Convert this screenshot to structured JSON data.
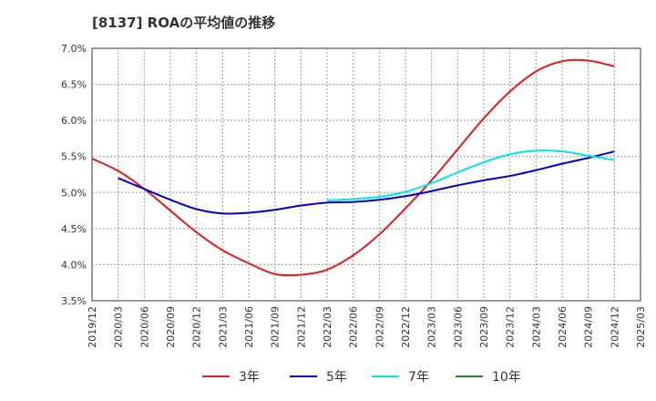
{
  "chart_data": {
    "type": "line",
    "title": "[8137]  ROAの平均値の推移",
    "xlabel": "",
    "ylabel": "",
    "ylim": [
      3.5,
      7.0
    ],
    "y_ticks": [
      "7.0%",
      "6.5%",
      "6.0%",
      "5.5%",
      "5.0%",
      "4.5%",
      "4.0%",
      "3.5%"
    ],
    "y_tick_values": [
      7.0,
      6.5,
      6.0,
      5.5,
      5.0,
      4.5,
      4.0,
      3.5
    ],
    "x_ticks": [
      "2019/12",
      "2020/03",
      "2020/06",
      "2020/09",
      "2020/12",
      "2021/03",
      "2021/06",
      "2021/09",
      "2021/12",
      "2022/03",
      "2022/06",
      "2022/09",
      "2022/12",
      "2023/03",
      "2023/06",
      "2023/09",
      "2023/12",
      "2024/03",
      "2024/06",
      "2024/09",
      "2024/12",
      "2025/03"
    ],
    "grid": true,
    "legend_position": "bottom",
    "series": [
      {
        "name": "3年",
        "color": "#e41a1c",
        "x": [
          "2019/12",
          "2020/03",
          "2020/06",
          "2020/09",
          "2020/12",
          "2021/03",
          "2021/06",
          "2021/09",
          "2021/12",
          "2022/03",
          "2022/06",
          "2022/09",
          "2022/12",
          "2023/03",
          "2023/06",
          "2023/09",
          "2023/12",
          "2024/03",
          "2024/06",
          "2024/09",
          "2024/12"
        ],
        "values": [
          5.47,
          5.3,
          5.05,
          4.75,
          4.45,
          4.2,
          4.02,
          3.87,
          3.86,
          3.93,
          4.13,
          4.42,
          4.78,
          5.17,
          5.6,
          6.03,
          6.4,
          6.68,
          6.82,
          6.83,
          6.75
        ]
      },
      {
        "name": "5年",
        "color": "#0000cc",
        "x": [
          "2020/03",
          "2020/06",
          "2020/09",
          "2020/12",
          "2021/03",
          "2021/06",
          "2021/09",
          "2021/12",
          "2022/03",
          "2022/06",
          "2022/09",
          "2022/12",
          "2023/03",
          "2023/06",
          "2023/09",
          "2023/12",
          "2024/03",
          "2024/06",
          "2024/09",
          "2024/12"
        ],
        "values": [
          5.2,
          5.05,
          4.9,
          4.77,
          4.71,
          4.72,
          4.76,
          4.82,
          4.86,
          4.87,
          4.9,
          4.95,
          5.02,
          5.1,
          5.17,
          5.23,
          5.31,
          5.4,
          5.48,
          5.57
        ]
      },
      {
        "name": "7年",
        "color": "#00e5ee",
        "x": [
          "2022/03",
          "2022/06",
          "2022/09",
          "2022/12",
          "2023/03",
          "2023/06",
          "2023/09",
          "2023/12",
          "2024/03",
          "2024/06",
          "2024/09",
          "2024/12"
        ],
        "values": [
          4.89,
          4.91,
          4.94,
          5.01,
          5.13,
          5.28,
          5.42,
          5.53,
          5.58,
          5.57,
          5.51,
          5.45
        ]
      },
      {
        "name": "10年",
        "color": "#228b22",
        "x": [],
        "values": []
      }
    ]
  }
}
